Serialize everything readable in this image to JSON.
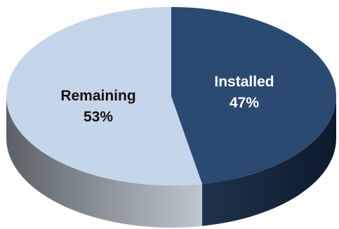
{
  "chart_data": {
    "type": "pie",
    "style": "3d",
    "slices": [
      {
        "label": "Installed",
        "value": 47,
        "value_label": "47%",
        "color": "#2b4a72",
        "label_color": "#ffffff"
      },
      {
        "label": "Remaining",
        "value": 53,
        "value_label": "53%",
        "color": "#c5d5ea",
        "label_color": "#111111"
      }
    ],
    "side_colors": {
      "Installed": {
        "dark": "#0e1a2c",
        "light": "#1f324c"
      },
      "Remaining": {
        "dark": "#5a6066",
        "light": "#bfc6d0"
      }
    },
    "start_angle_deg": -90,
    "direction": "clockwise",
    "legend": "none"
  }
}
